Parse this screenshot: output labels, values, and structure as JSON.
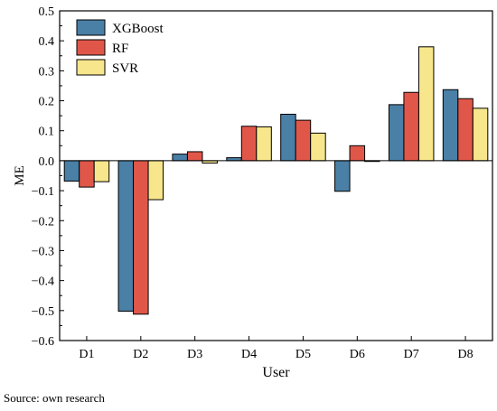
{
  "chart_data": {
    "type": "bar",
    "xlabel": "User",
    "ylabel": "ME",
    "ylim": [
      -0.6,
      0.5
    ],
    "yticks": [
      -0.6,
      -0.5,
      -0.4,
      -0.3,
      -0.2,
      -0.1,
      0.0,
      0.1,
      0.2,
      0.3,
      0.4,
      0.5
    ],
    "ytick_labels": [
      "−0.6",
      "−0.5",
      "−0.4",
      "−0.3",
      "−0.2",
      "−0.1",
      "0.0",
      "0.1",
      "0.2",
      "0.3",
      "0.4",
      "0.5"
    ],
    "categories": [
      "D1",
      "D2",
      "D3",
      "D4",
      "D5",
      "D6",
      "D7",
      "D8"
    ],
    "series": [
      {
        "name": "XGBoost",
        "color": "#4a7fa6",
        "values": [
          -0.068,
          -0.502,
          0.022,
          0.01,
          0.155,
          -0.102,
          0.187,
          0.237
        ]
      },
      {
        "name": "RF",
        "color": "#e0574a",
        "values": [
          -0.088,
          -0.512,
          0.03,
          0.115,
          0.135,
          0.05,
          0.228,
          0.207
        ]
      },
      {
        "name": "SVR",
        "color": "#f7e68c",
        "values": [
          -0.07,
          -0.13,
          -0.008,
          0.113,
          0.092,
          0.0,
          0.38,
          0.175
        ]
      }
    ],
    "grid": false,
    "legend_position": "top-left"
  },
  "footer": {
    "source": "Source: own research"
  }
}
